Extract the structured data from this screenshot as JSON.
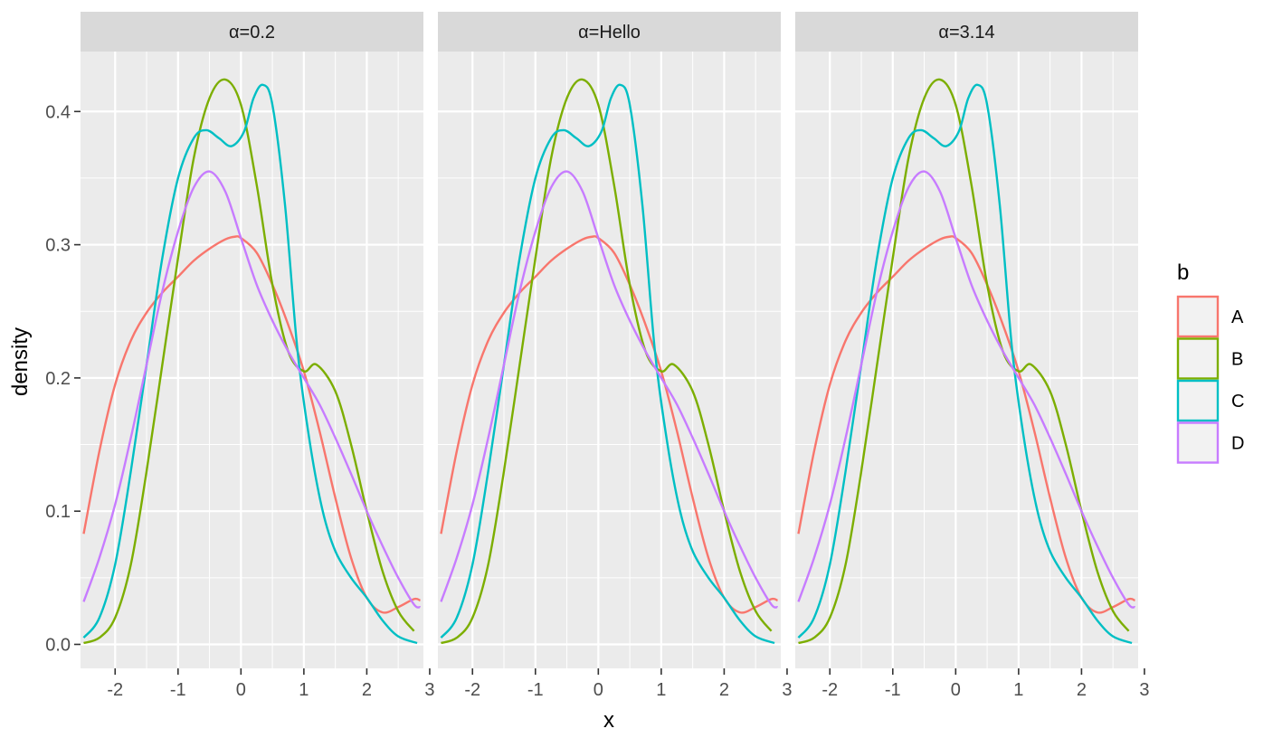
{
  "chart_data": {
    "type": "line",
    "facet_variable": "α",
    "facets": [
      "α=0.2",
      "α=Hello",
      "α=3.14"
    ],
    "xlabel": "x",
    "ylabel": "density",
    "xlim": [
      -2.55,
      2.9
    ],
    "ylim": [
      -0.018,
      0.445
    ],
    "x_ticks": [
      -2,
      -1,
      0,
      1,
      2,
      3
    ],
    "x_tick_labels": [
      "-2",
      "-1",
      "0",
      "1",
      "2",
      "3"
    ],
    "y_ticks": [
      0.0,
      0.1,
      0.2,
      0.3,
      0.4
    ],
    "y_tick_labels": [
      "0.0",
      "0.1",
      "0.2",
      "0.3",
      "0.4"
    ],
    "grid": true,
    "legend": {
      "title": "b",
      "position": "right",
      "entries": [
        "A",
        "B",
        "C",
        "D"
      ]
    },
    "series": [
      {
        "name": "A",
        "color": "#F8766D",
        "points": [
          [
            -2.5,
            0.083
          ],
          [
            -2.25,
            0.145
          ],
          [
            -2.0,
            0.195
          ],
          [
            -1.75,
            0.228
          ],
          [
            -1.5,
            0.249
          ],
          [
            -1.25,
            0.264
          ],
          [
            -1.0,
            0.276
          ],
          [
            -0.75,
            0.288
          ],
          [
            -0.5,
            0.297
          ],
          [
            -0.25,
            0.304
          ],
          [
            -0.1,
            0.306
          ],
          [
            0.0,
            0.305
          ],
          [
            0.25,
            0.294
          ],
          [
            0.5,
            0.27
          ],
          [
            0.75,
            0.24
          ],
          [
            1.0,
            0.205
          ],
          [
            1.25,
            0.16
          ],
          [
            1.5,
            0.11
          ],
          [
            1.75,
            0.065
          ],
          [
            2.0,
            0.035
          ],
          [
            2.25,
            0.024
          ],
          [
            2.5,
            0.028
          ],
          [
            2.75,
            0.034
          ],
          [
            2.85,
            0.033
          ]
        ]
      },
      {
        "name": "B",
        "color": "#7CAE00",
        "points": [
          [
            -2.5,
            0.001
          ],
          [
            -2.25,
            0.005
          ],
          [
            -2.0,
            0.02
          ],
          [
            -1.75,
            0.06
          ],
          [
            -1.5,
            0.13
          ],
          [
            -1.25,
            0.21
          ],
          [
            -1.0,
            0.29
          ],
          [
            -0.75,
            0.365
          ],
          [
            -0.5,
            0.41
          ],
          [
            -0.25,
            0.424
          ],
          [
            0.0,
            0.405
          ],
          [
            0.25,
            0.345
          ],
          [
            0.5,
            0.27
          ],
          [
            0.75,
            0.22
          ],
          [
            1.0,
            0.205
          ],
          [
            1.2,
            0.21
          ],
          [
            1.5,
            0.19
          ],
          [
            1.75,
            0.15
          ],
          [
            2.0,
            0.1
          ],
          [
            2.25,
            0.055
          ],
          [
            2.5,
            0.025
          ],
          [
            2.75,
            0.01
          ]
        ]
      },
      {
        "name": "C",
        "color": "#00BFC4",
        "points": [
          [
            -2.5,
            0.005
          ],
          [
            -2.25,
            0.02
          ],
          [
            -2.0,
            0.06
          ],
          [
            -1.75,
            0.13
          ],
          [
            -1.5,
            0.21
          ],
          [
            -1.25,
            0.29
          ],
          [
            -1.0,
            0.35
          ],
          [
            -0.75,
            0.38
          ],
          [
            -0.55,
            0.386
          ],
          [
            -0.35,
            0.38
          ],
          [
            -0.15,
            0.374
          ],
          [
            0.05,
            0.385
          ],
          [
            0.2,
            0.41
          ],
          [
            0.35,
            0.42
          ],
          [
            0.5,
            0.405
          ],
          [
            0.7,
            0.33
          ],
          [
            0.9,
            0.22
          ],
          [
            1.1,
            0.15
          ],
          [
            1.3,
            0.1
          ],
          [
            1.5,
            0.07
          ],
          [
            1.75,
            0.05
          ],
          [
            2.0,
            0.035
          ],
          [
            2.25,
            0.018
          ],
          [
            2.5,
            0.006
          ],
          [
            2.8,
            0.001
          ]
        ]
      },
      {
        "name": "D",
        "color": "#C77CFF",
        "points": [
          [
            -2.5,
            0.032
          ],
          [
            -2.25,
            0.065
          ],
          [
            -2.0,
            0.105
          ],
          [
            -1.75,
            0.155
          ],
          [
            -1.5,
            0.21
          ],
          [
            -1.25,
            0.265
          ],
          [
            -1.0,
            0.31
          ],
          [
            -0.75,
            0.343
          ],
          [
            -0.5,
            0.355
          ],
          [
            -0.25,
            0.34
          ],
          [
            0.0,
            0.305
          ],
          [
            0.25,
            0.27
          ],
          [
            0.5,
            0.243
          ],
          [
            0.75,
            0.22
          ],
          [
            1.0,
            0.2
          ],
          [
            1.25,
            0.18
          ],
          [
            1.5,
            0.155
          ],
          [
            1.75,
            0.128
          ],
          [
            2.0,
            0.1
          ],
          [
            2.25,
            0.074
          ],
          [
            2.5,
            0.05
          ],
          [
            2.75,
            0.03
          ],
          [
            2.85,
            0.028
          ]
        ]
      }
    ]
  }
}
